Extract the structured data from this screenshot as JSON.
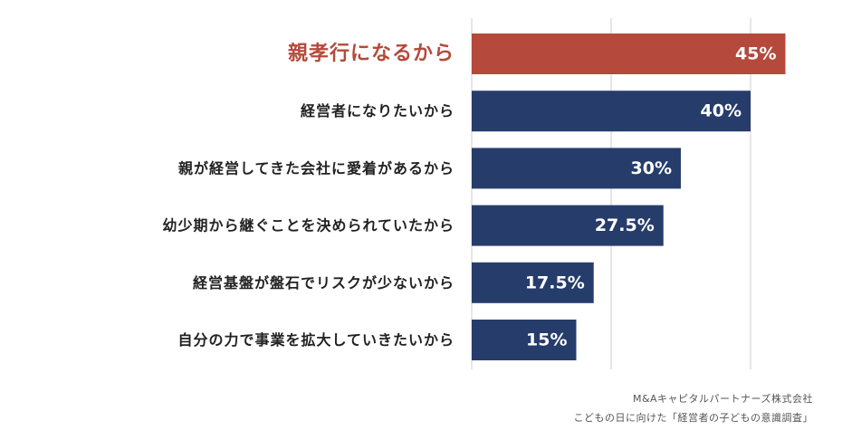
{
  "chart_data": {
    "type": "bar",
    "orientation": "horizontal",
    "categories": [
      "親孝行になるから",
      "経営者になりたいから",
      "親が経営してきた会社に愛着があるから",
      "幼少期から継ぐことを決められていたから",
      "経営基盤が盤石でリスクが少ないから",
      "自分の力で事業を拡大していきたいから"
    ],
    "values": [
      45,
      40,
      30,
      27.5,
      17.5,
      15
    ],
    "value_labels": [
      "45%",
      "40%",
      "30%",
      "27.5%",
      "17.5%",
      "15%"
    ],
    "highlight_index": 0,
    "xlim": [
      0,
      50
    ],
    "gridlines": [
      0,
      20,
      40
    ],
    "grid": true,
    "legend": "none",
    "colors": {
      "highlight": "#b5493b",
      "bar": "#263d6b",
      "grid": "#cccccc",
      "label": "#222222",
      "value_text": "#ffffff"
    }
  },
  "source": {
    "line1": "M&Aキャピタルパートナーズ株式会社",
    "line2": "こどもの日に向けた「経営者の子どもの意識調査」"
  }
}
